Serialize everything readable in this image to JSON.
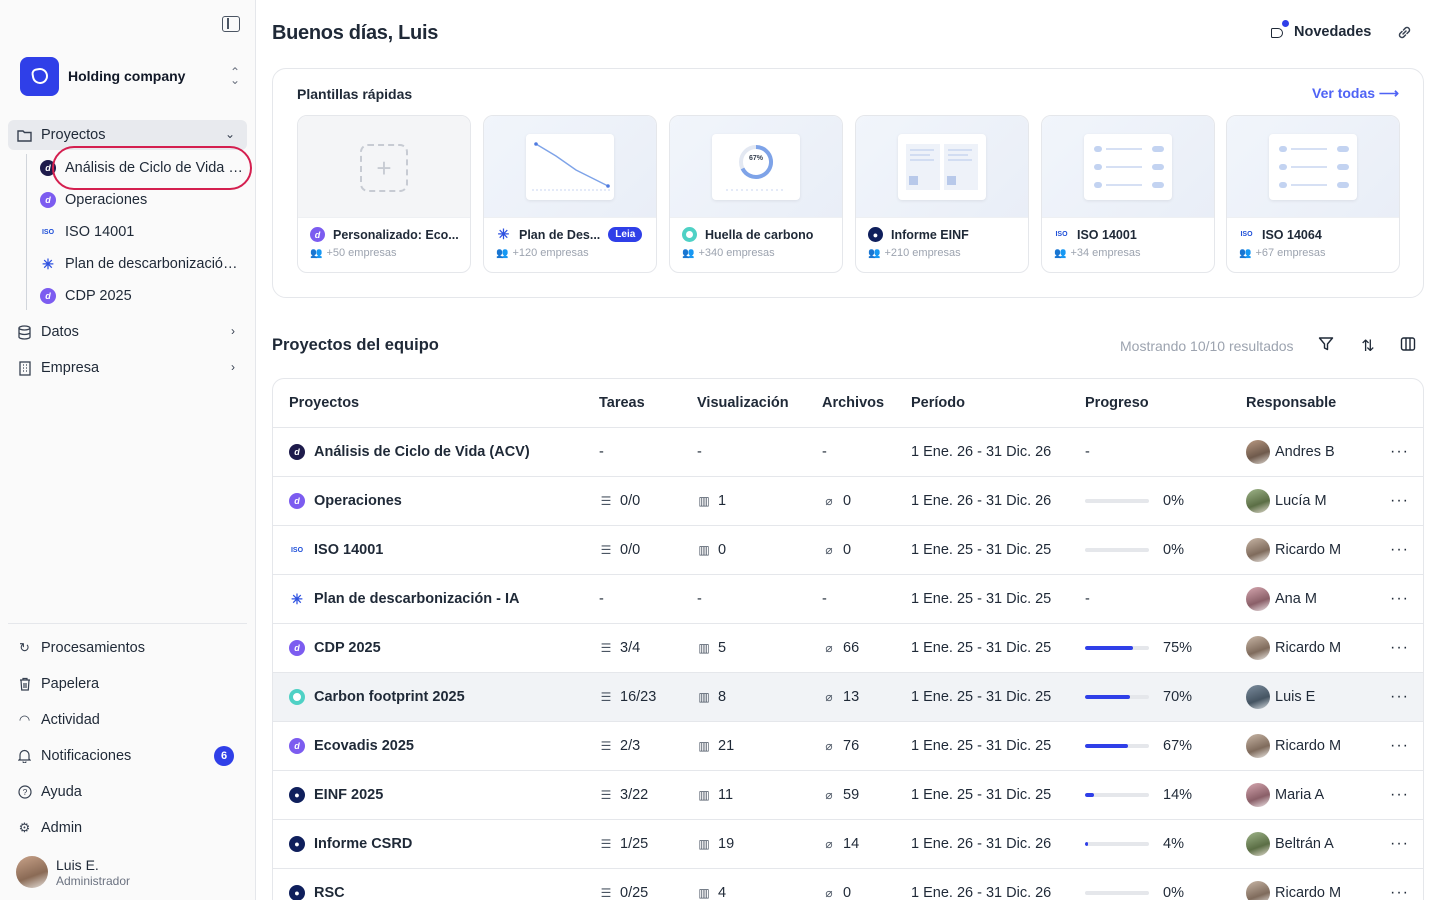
{
  "sidebar": {
    "company": "Holding company",
    "nav": {
      "proyectos": "Proyectos",
      "datos": "Datos",
      "empresa": "Empresa"
    },
    "projects": [
      "Análisis de Ciclo de Vida (ACV)",
      "Operaciones",
      "ISO 14001",
      "Plan de descarbonización - IA",
      "CDP 2025"
    ],
    "bottom": {
      "procesamientos": "Procesamientos",
      "papelera": "Papelera",
      "actividad": "Actividad",
      "notificaciones": "Notificaciones",
      "notif_count": "6",
      "ayuda": "Ayuda",
      "admin": "Admin"
    },
    "user": {
      "name": "Luis E.",
      "role": "Administrador"
    }
  },
  "header": {
    "greeting": "Buenos días, Luis",
    "news": "Novedades"
  },
  "templates": {
    "title": "Plantillas rápidas",
    "see_all": "Ver todas ⟶",
    "items": [
      {
        "name": "Personalizado: Eco...",
        "count": "+50 empresas"
      },
      {
        "name": "Plan de Des...",
        "count": "+120 empresas",
        "tag": "Leia"
      },
      {
        "name": "Huella de carbono",
        "count": "+340 empresas",
        "thumb_label": "67%"
      },
      {
        "name": "Informe EINF",
        "count": "+210 empresas"
      },
      {
        "name": "ISO 14001",
        "count": "+34 empresas"
      },
      {
        "name": "ISO 14064",
        "count": "+67 empresas"
      }
    ]
  },
  "team": {
    "title": "Proyectos del equipo",
    "results": "Mostrando 10/10 resultados",
    "columns": {
      "projects": "Proyectos",
      "tasks": "Tareas",
      "vis": "Visualización",
      "files": "Archivos",
      "period": "Período",
      "progress": "Progreso",
      "owner": "Responsable"
    },
    "rows": [
      {
        "name": "Análisis de Ciclo de Vida (ACV)",
        "tasks": "-",
        "vis": "-",
        "files": "-",
        "period": "1 Ene. 26 - 31 Dic. 26",
        "progress": "-",
        "progress_value": null,
        "owner": "Andres B"
      },
      {
        "name": "Operaciones",
        "tasks": "0/0",
        "vis": "1",
        "files": "0",
        "period": "1 Ene. 26 - 31 Dic. 26",
        "progress": "0%",
        "progress_value": 0,
        "owner": "Lucía M"
      },
      {
        "name": "ISO 14001",
        "tasks": "0/0",
        "vis": "0",
        "files": "0",
        "period": "1 Ene. 25 - 31 Dic. 25",
        "progress": "0%",
        "progress_value": 0,
        "owner": "Ricardo M"
      },
      {
        "name": "Plan de descarbonización - IA",
        "tasks": "-",
        "vis": "-",
        "files": "-",
        "period": "1 Ene. 25 - 31 Dic. 25",
        "progress": "-",
        "progress_value": null,
        "owner": "Ana M"
      },
      {
        "name": "CDP 2025",
        "tasks": "3/4",
        "vis": "5",
        "files": "66",
        "period": "1 Ene. 25 - 31 Dic. 25",
        "progress": "75%",
        "progress_value": 75,
        "owner": "Ricardo M"
      },
      {
        "name": "Carbon footprint 2025",
        "tasks": "16/23",
        "vis": "8",
        "files": "13",
        "period": "1 Ene. 25 - 31 Dic. 25",
        "progress": "70%",
        "progress_value": 70,
        "owner": "Luis E"
      },
      {
        "name": "Ecovadis 2025",
        "tasks": "2/3",
        "vis": "21",
        "files": "76",
        "period": "1 Ene. 25 - 31 Dic. 25",
        "progress": "67%",
        "progress_value": 67,
        "owner": "Ricardo M"
      },
      {
        "name": "EINF 2025",
        "tasks": "3/22",
        "vis": "11",
        "files": "59",
        "period": "1 Ene. 25 - 31 Dic. 25",
        "progress": "14%",
        "progress_value": 14,
        "owner": "Maria A"
      },
      {
        "name": "Informe CSRD",
        "tasks": "1/25",
        "vis": "19",
        "files": "14",
        "period": "1 Ene. 26 - 31 Dic. 26",
        "progress": "4%",
        "progress_value": 4,
        "owner": "Beltrán A"
      },
      {
        "name": "RSC",
        "tasks": "0/25",
        "vis": "4",
        "files": "0",
        "period": "1 Ene. 26 - 31 Dic. 26",
        "progress": "0%",
        "progress_value": 0,
        "owner": "Ricardo M"
      }
    ]
  },
  "colors": {
    "accent": "#2f3fe8",
    "highlight_ring": "#d41f4f",
    "link": "#4f63f5"
  }
}
